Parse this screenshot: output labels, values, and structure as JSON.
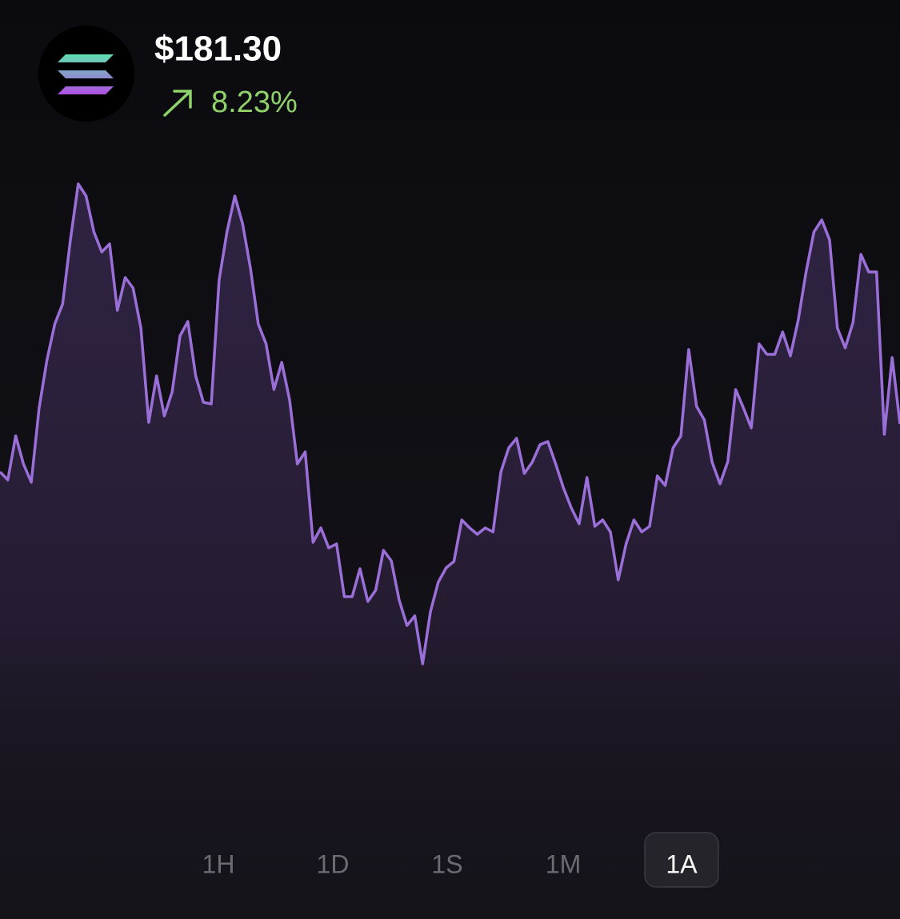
{
  "header": {
    "price": "$181.30",
    "change": "8.23%"
  },
  "chart_data": {
    "type": "line",
    "color": "#9b6fd8",
    "ylim": [
      0,
      200
    ],
    "values": [
      102.5,
      100,
      113.75,
      105,
      99.25,
      122.5,
      137.5,
      148.75,
      155,
      175,
      192.5,
      188.75,
      177.5,
      171.25,
      173.75,
      153,
      163.25,
      160,
      147.5,
      118,
      132.5,
      120,
      127.5,
      145,
      149.5,
      132.5,
      124.25,
      123.75,
      162.5,
      177.5,
      188.75,
      180,
      166.25,
      148.75,
      142.5,
      128.25,
      136.75,
      125,
      105,
      108.75,
      80.5,
      85,
      78.75,
      80,
      63.5,
      63.5,
      72.25,
      62,
      65.5,
      78,
      74.75,
      62.5,
      54.5,
      57.5,
      42.5,
      58.75,
      68,
      72.5,
      74.5,
      87.5,
      85,
      83,
      85,
      83.75,
      102.5,
      110,
      113,
      102,
      105.5,
      111,
      112,
      105,
      97.5,
      91.25,
      86.25,
      100.75,
      85.5,
      87.5,
      83.75,
      68.75,
      80,
      87.5,
      83.75,
      85.5,
      101.25,
      98.25,
      110,
      113.75,
      140.75,
      123,
      118.75,
      105.5,
      98.75,
      105.75,
      128.25,
      122.5,
      116.25,
      142.5,
      139.25,
      139.25,
      146.25,
      138.75,
      150,
      165,
      177.5,
      181.25,
      175,
      147.5,
      141.25,
      149.25,
      170.5,
      165,
      165,
      114.25,
      138.25,
      117.5
    ]
  },
  "timeframes": [
    "1H",
    "1D",
    "1S",
    "1M",
    "1A"
  ],
  "selected_timeframe": 4
}
